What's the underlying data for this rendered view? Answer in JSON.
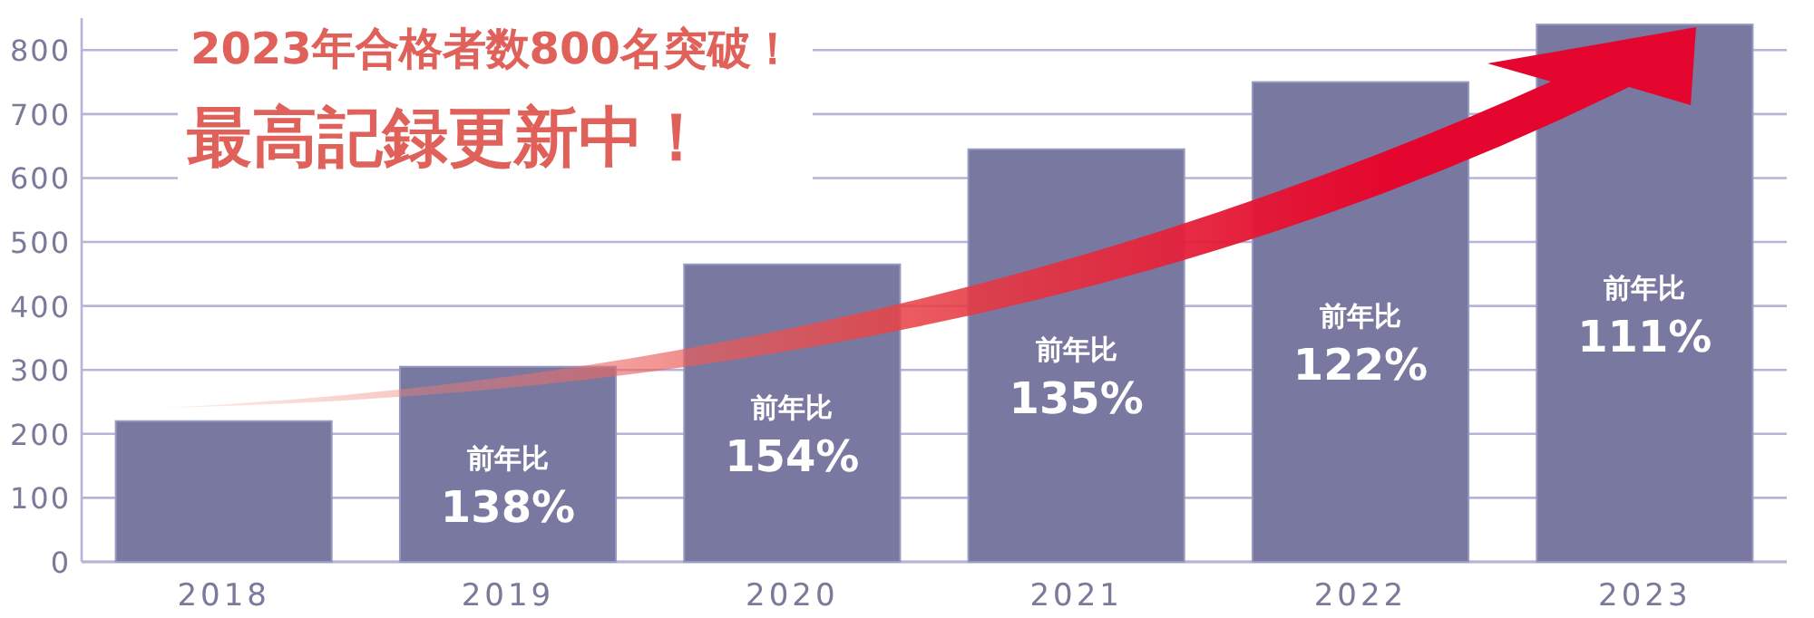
{
  "chart_data": {
    "type": "bar",
    "title": "2023年合格者数800名突破！",
    "subtitle": "最高記録更新中！",
    "categories": [
      "2018",
      "2019",
      "2020",
      "2021",
      "2022",
      "2023"
    ],
    "values": [
      220,
      305,
      465,
      645,
      750,
      840
    ],
    "color": "#7878a0",
    "ylim": [
      0,
      850
    ],
    "yticks": [
      0,
      100,
      200,
      300,
      400,
      500,
      600,
      700,
      800
    ],
    "grid": "y",
    "annotations": [
      "前年比 138%",
      "前年比 154%",
      "前年比 135%",
      "前年比 122%",
      "前年比 111%"
    ]
  }
}
